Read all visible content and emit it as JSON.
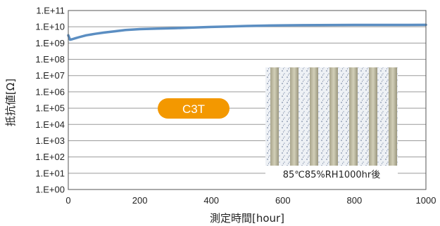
{
  "chart_data": {
    "type": "line",
    "xlabel": "測定時間[hour]",
    "ylabel": "抵抗値[Ω]",
    "x_ticks": [
      "0",
      "200",
      "400",
      "600",
      "800",
      "1000"
    ],
    "y_ticks": [
      "1.E+00",
      "1.E+01",
      "1.E+02",
      "1.E+03",
      "1.E+04",
      "1.E+05",
      "1.E+06",
      "1.E+07",
      "1.E+08",
      "1.E+09",
      "1.E+10",
      "1.E+11"
    ],
    "xlim": [
      0,
      1000
    ],
    "ylim": [
      1,
      100000000000
    ],
    "y_scale": "log",
    "grid": true,
    "series": [
      {
        "color": "#5b8ec2",
        "x": [
          0,
          5,
          10,
          20,
          30,
          50,
          75,
          100,
          130,
          160,
          200,
          250,
          300,
          350,
          400,
          450,
          500,
          550,
          600,
          650,
          700,
          750,
          800,
          850,
          900,
          950,
          1000
        ],
        "y": [
          3000000000,
          1600000000,
          1700000000,
          2000000000,
          2300000000,
          3000000000,
          3700000000,
          4400000000,
          5300000000,
          6300000000,
          7200000000,
          7800000000,
          8300000000,
          9000000000,
          9800000000,
          10500000000,
          11300000000,
          11800000000,
          12300000000,
          12600000000,
          12800000000,
          12900000000,
          13000000000,
          13000000000,
          13100000000,
          13100000000,
          13200000000
        ]
      }
    ]
  },
  "badge": {
    "label": "C3T",
    "color": "#f39800"
  },
  "inset": {
    "caption": "85℃85%RH1000hr後"
  }
}
